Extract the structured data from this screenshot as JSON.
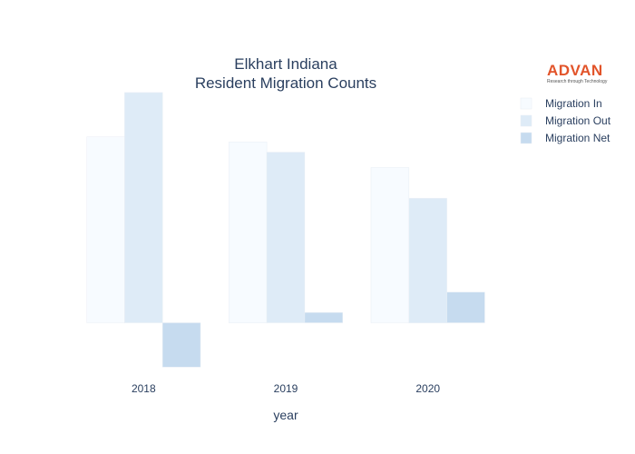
{
  "chart_data": {
    "type": "bar",
    "title_lines": [
      "Elkhart Indiana",
      "Resident Migration Counts"
    ],
    "xlabel": "year",
    "ylabel": "",
    "categories": [
      "2018",
      "2019",
      "2020"
    ],
    "series": [
      {
        "name": "Migration In",
        "values": [
          5450,
          5300,
          4550
        ],
        "color": "#f7fbff"
      },
      {
        "name": "Migration Out",
        "values": [
          6750,
          5000,
          3650
        ],
        "color": "#deebf7"
      },
      {
        "name": "Migration Net",
        "values": [
          -1300,
          300,
          900
        ],
        "color": "#c6dbef"
      }
    ],
    "ylim": [
      -1450,
      6800
    ],
    "grid": false,
    "legend_position": "top-right"
  },
  "logo": {
    "name": "ADVAN",
    "tagline": "Research through Technology",
    "color": "#e2542a"
  }
}
